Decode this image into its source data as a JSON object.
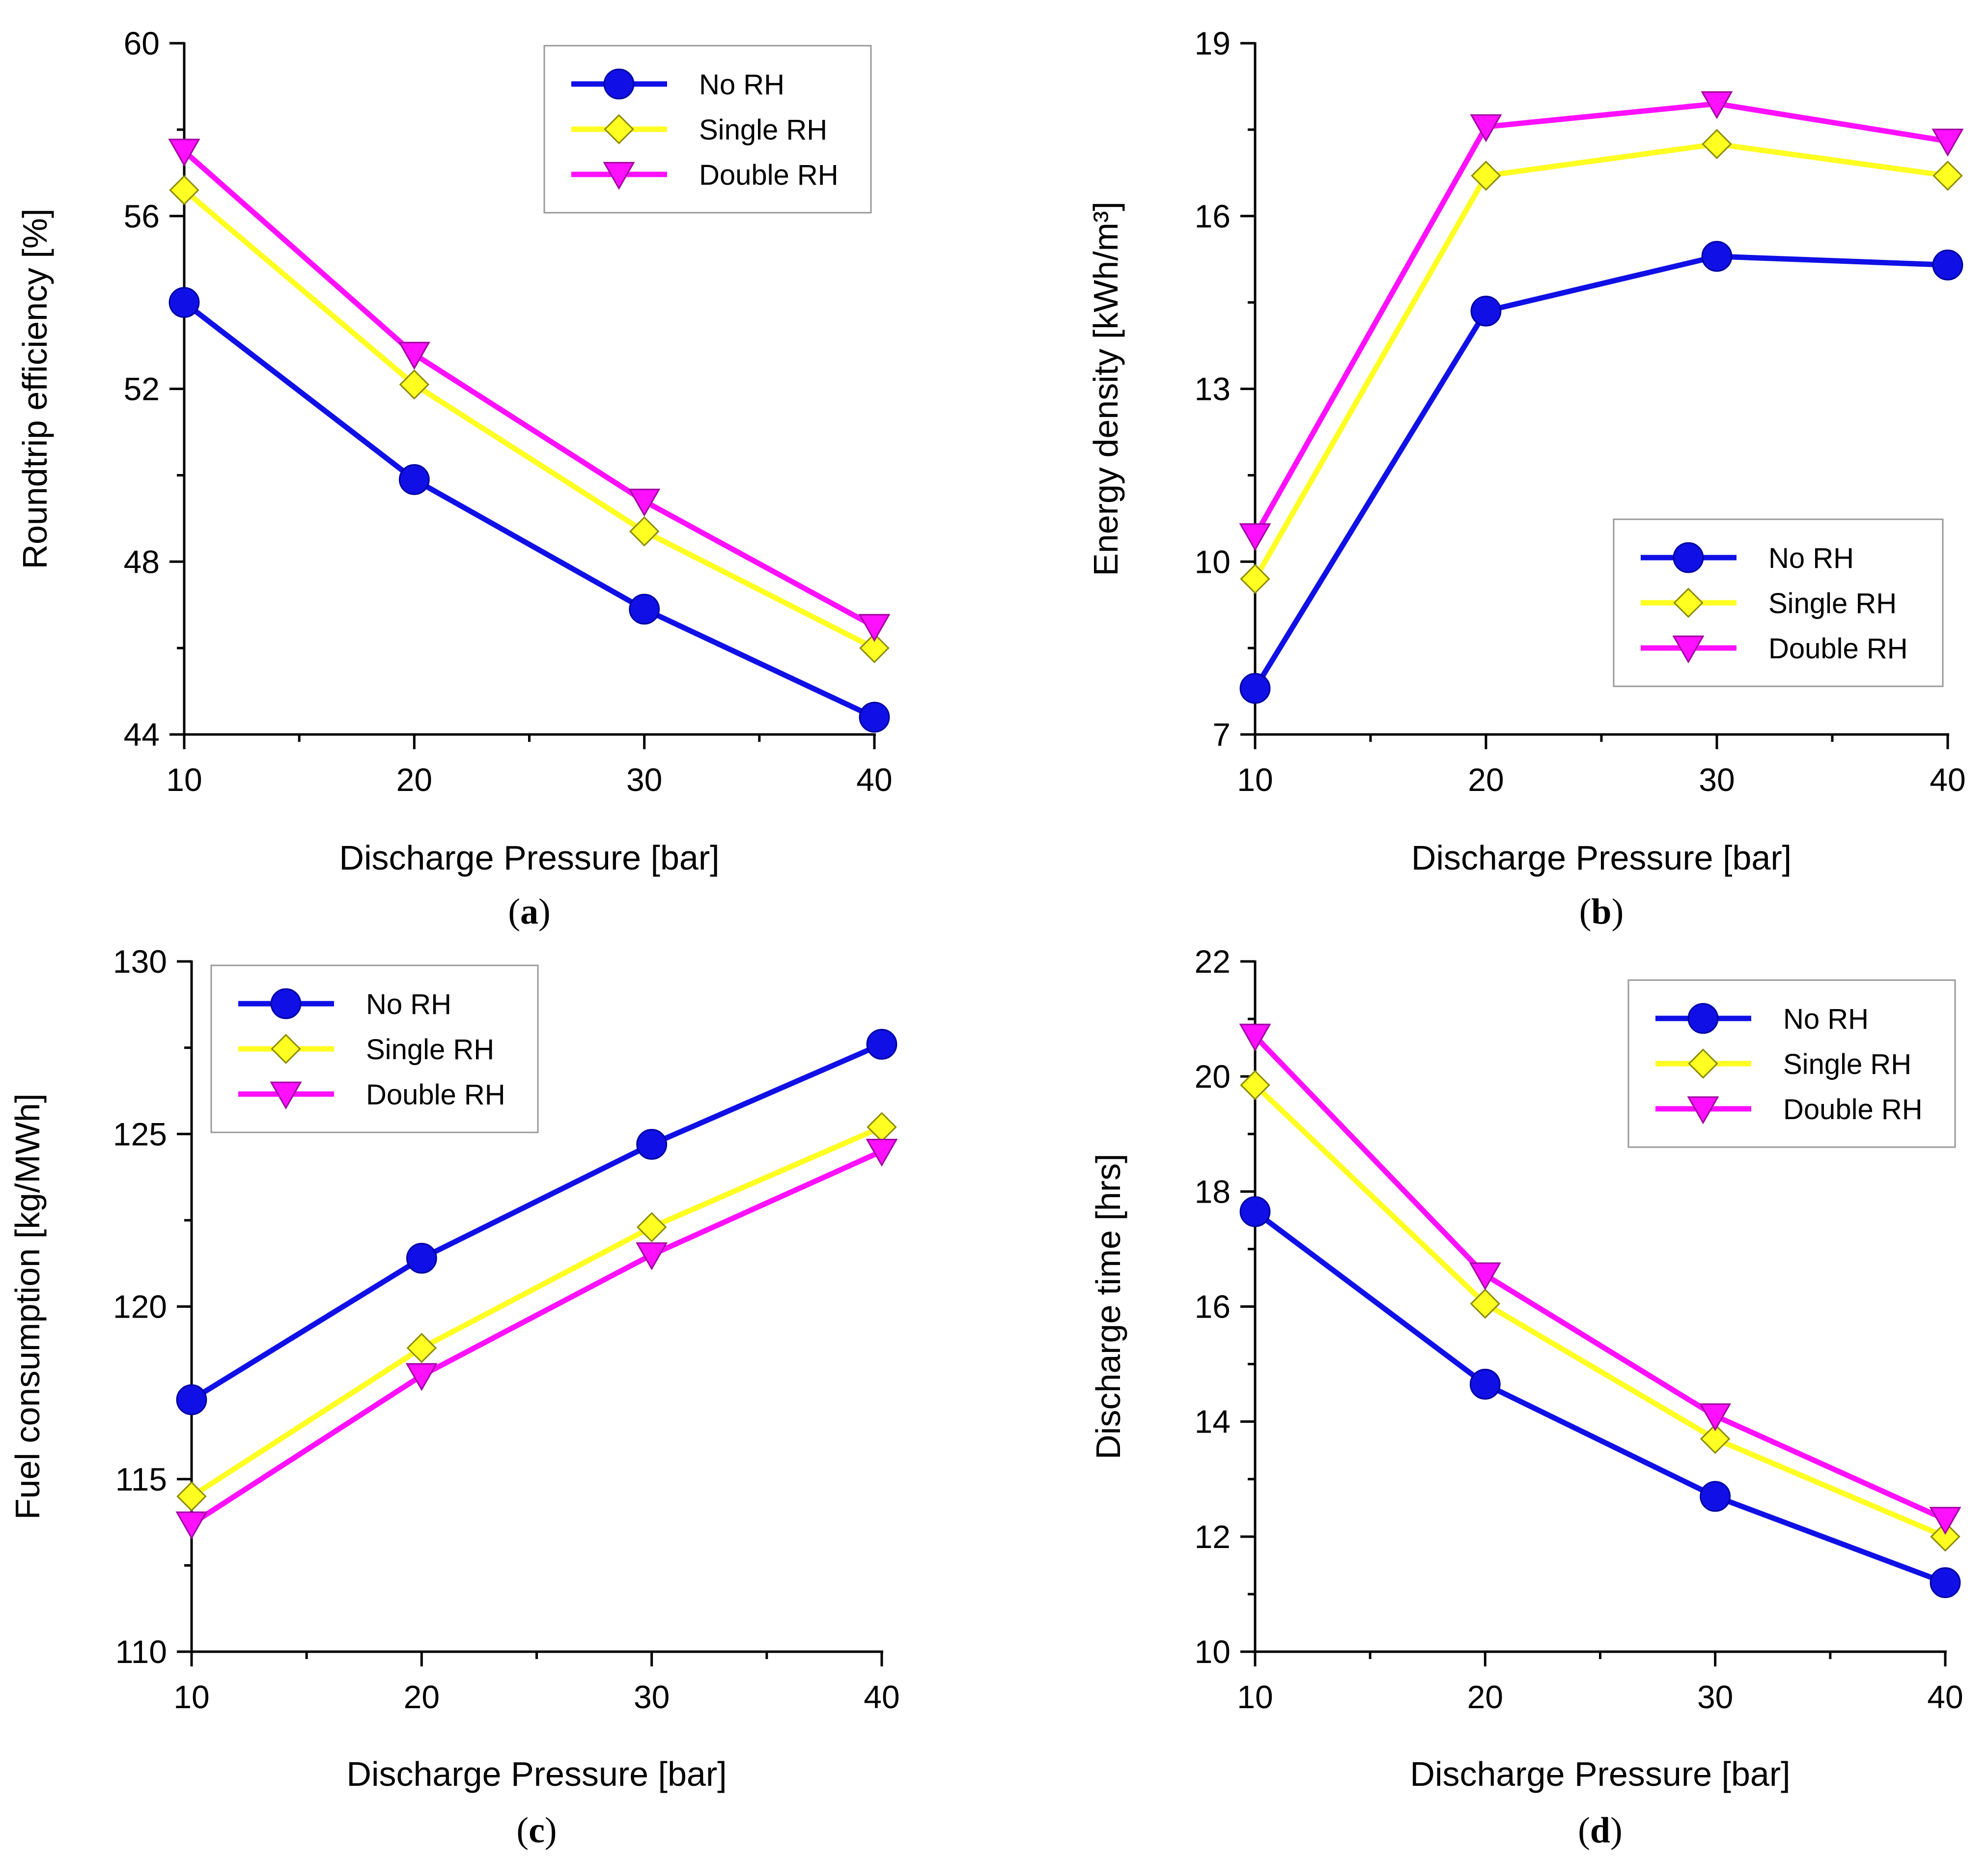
{
  "colors": {
    "no_rh": "#1010E6",
    "single_rh": "#FFFF22",
    "double_rh": "#FF10FF",
    "axis": "#000000"
  },
  "legend_labels": [
    "No RH",
    "Single RH",
    "Double RH"
  ],
  "chart_data": [
    {
      "type": "line",
      "panel": "a",
      "title": "",
      "xlabel": "Discharge Pressure [bar]",
      "ylabel": "Roundtrip efficiency [%]",
      "xlim": [
        10,
        40
      ],
      "ylim": [
        44,
        60
      ],
      "xticks": [
        10,
        20,
        30,
        40
      ],
      "yticks": [
        44,
        48,
        52,
        56,
        60
      ],
      "x": [
        10,
        20,
        30,
        40
      ],
      "legend_position": "top-right",
      "series": [
        {
          "name": "No RH",
          "marker": "circle",
          "values": [
            54.0,
            49.9,
            46.9,
            44.4
          ]
        },
        {
          "name": "Single RH",
          "marker": "diamond",
          "values": [
            56.6,
            52.1,
            48.7,
            46.0
          ]
        },
        {
          "name": "Double RH",
          "marker": "triangle-down",
          "values": [
            57.5,
            52.8,
            49.4,
            46.5
          ]
        }
      ]
    },
    {
      "type": "line",
      "panel": "b",
      "title": "",
      "xlabel": "Discharge Pressure [bar]",
      "ylabel": "Energy density [kWh/m³]",
      "xlim": [
        10,
        40
      ],
      "ylim": [
        7,
        19
      ],
      "xticks": [
        10,
        20,
        30,
        40
      ],
      "yticks": [
        7,
        10,
        13,
        16,
        19
      ],
      "x": [
        10,
        20,
        30,
        40
      ],
      "legend_position": "center-right",
      "series": [
        {
          "name": "No RH",
          "marker": "circle",
          "values": [
            7.8,
            14.35,
            15.3,
            15.15
          ]
        },
        {
          "name": "Single RH",
          "marker": "diamond",
          "values": [
            9.7,
            16.7,
            17.25,
            16.7
          ]
        },
        {
          "name": "Double RH",
          "marker": "triangle-down",
          "values": [
            10.45,
            17.55,
            17.95,
            17.3
          ]
        }
      ]
    },
    {
      "type": "line",
      "panel": "c",
      "title": "",
      "xlabel": "Discharge Pressure [bar]",
      "ylabel": "Fuel consumption [kg/MWh]",
      "xlim": [
        10,
        40
      ],
      "ylim": [
        110,
        130
      ],
      "xticks": [
        10,
        20,
        30,
        40
      ],
      "yticks": [
        110,
        115,
        120,
        125,
        130
      ],
      "x": [
        10,
        20,
        30,
        40
      ],
      "legend_position": "top-left",
      "series": [
        {
          "name": "No RH",
          "marker": "circle",
          "values": [
            117.3,
            121.4,
            124.7,
            127.6
          ]
        },
        {
          "name": "Single RH",
          "marker": "diamond",
          "values": [
            114.5,
            118.8,
            122.3,
            125.2
          ]
        },
        {
          "name": "Double RH",
          "marker": "triangle-down",
          "values": [
            113.7,
            118.0,
            121.5,
            124.5
          ]
        }
      ]
    },
    {
      "type": "line",
      "panel": "d",
      "title": "",
      "xlabel": "Discharge Pressure [bar]",
      "ylabel": "Discharge time [hrs]",
      "xlim": [
        10,
        40
      ],
      "ylim": [
        10,
        22
      ],
      "xticks": [
        10,
        20,
        30,
        40
      ],
      "yticks": [
        10,
        12,
        14,
        16,
        18,
        20,
        22
      ],
      "x": [
        10,
        20,
        30,
        40
      ],
      "legend_position": "top-right",
      "series": [
        {
          "name": "No RH",
          "marker": "circle",
          "values": [
            17.65,
            14.65,
            12.7,
            11.2
          ]
        },
        {
          "name": "Single RH",
          "marker": "diamond",
          "values": [
            19.85,
            16.05,
            13.7,
            12.0
          ]
        },
        {
          "name": "Double RH",
          "marker": "triangle-down",
          "values": [
            20.7,
            16.55,
            14.1,
            12.3
          ]
        }
      ]
    }
  ],
  "panel_labels": [
    {
      "open": "(",
      "letter": "a",
      "close": ")"
    },
    {
      "open": "(",
      "letter": "b",
      "close": ")"
    },
    {
      "open": "(",
      "letter": "c",
      "close": ")"
    },
    {
      "open": "(",
      "letter": "d",
      "close": ")"
    }
  ]
}
